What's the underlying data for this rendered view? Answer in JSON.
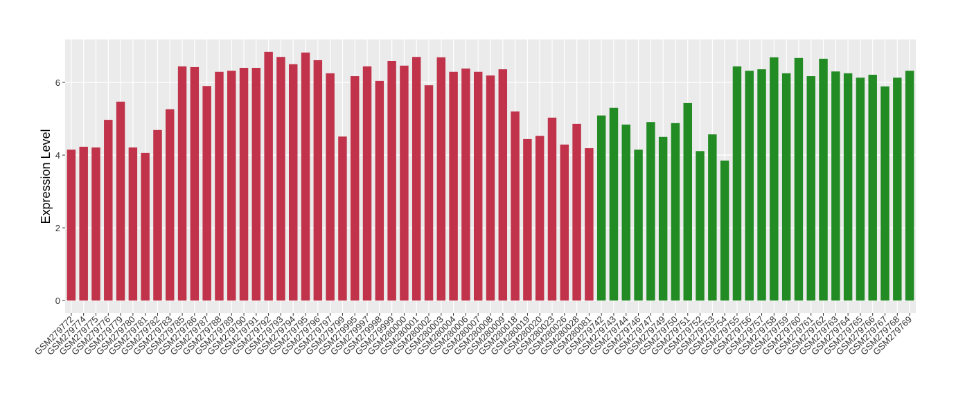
{
  "chart_data": {
    "type": "bar",
    "y_label": "Expression Level",
    "categories": [
      "GSM279772",
      "GSM279774",
      "GSM279775",
      "GSM279776",
      "GSM279779",
      "GSM279780",
      "GSM279781",
      "GSM279782",
      "GSM279783",
      "GSM279785",
      "GSM279786",
      "GSM279787",
      "GSM279788",
      "GSM279789",
      "GSM279790",
      "GSM279791",
      "GSM279792",
      "GSM279793",
      "GSM279794",
      "GSM279795",
      "GSM279796",
      "GSM279797",
      "GSM279799",
      "GSM279995",
      "GSM279997",
      "GSM279998",
      "GSM279999",
      "GSM280000",
      "GSM280001",
      "GSM280002",
      "GSM280003",
      "GSM280004",
      "GSM280006",
      "GSM280007",
      "GSM280008",
      "GSM280009",
      "GSM280018",
      "GSM280019",
      "GSM280020",
      "GSM280023",
      "GSM280026",
      "GSM280028",
      "GSM280081",
      "GSM279742",
      "GSM279743",
      "GSM279744",
      "GSM279746",
      "GSM279747",
      "GSM279749",
      "GSM279750",
      "GSM279751",
      "GSM279752",
      "GSM279753",
      "GSM279754",
      "GSM279755",
      "GSM279756",
      "GSM279757",
      "GSM279758",
      "GSM279759",
      "GSM279760",
      "GSM279761",
      "GSM279762",
      "GSM279763",
      "GSM279764",
      "GSM279765",
      "GSM279766",
      "GSM279767",
      "GSM279768",
      "GSM279769"
    ],
    "values": [
      4.15,
      4.23,
      4.21,
      4.97,
      5.47,
      4.21,
      4.06,
      4.69,
      5.26,
      6.44,
      6.42,
      5.9,
      6.29,
      6.32,
      6.4,
      6.4,
      6.84,
      6.7,
      6.5,
      6.82,
      6.61,
      6.25,
      4.51,
      6.17,
      6.44,
      6.04,
      6.59,
      6.46,
      6.7,
      5.92,
      6.69,
      6.29,
      6.38,
      6.29,
      6.19,
      6.36,
      5.2,
      4.44,
      4.53,
      5.03,
      4.29,
      4.86,
      4.19,
      5.09,
      5.3,
      4.84,
      4.15,
      4.91,
      4.5,
      4.88,
      5.43,
      4.11,
      4.57,
      3.85,
      6.44,
      6.32,
      6.36,
      6.69,
      6.25,
      6.67,
      6.17,
      6.65,
      6.3,
      6.25,
      6.13,
      6.21,
      5.89,
      6.13,
      6.32
    ],
    "colors": [
      "#c0334a",
      "#c0334a",
      "#c0334a",
      "#c0334a",
      "#c0334a",
      "#c0334a",
      "#c0334a",
      "#c0334a",
      "#c0334a",
      "#c0334a",
      "#c0334a",
      "#c0334a",
      "#c0334a",
      "#c0334a",
      "#c0334a",
      "#c0334a",
      "#c0334a",
      "#c0334a",
      "#c0334a",
      "#c0334a",
      "#c0334a",
      "#c0334a",
      "#c0334a",
      "#c0334a",
      "#c0334a",
      "#c0334a",
      "#c0334a",
      "#c0334a",
      "#c0334a",
      "#c0334a",
      "#c0334a",
      "#c0334a",
      "#c0334a",
      "#c0334a",
      "#c0334a",
      "#c0334a",
      "#c0334a",
      "#c0334a",
      "#c0334a",
      "#c0334a",
      "#c0334a",
      "#c0334a",
      "#c0334a",
      "#238b23",
      "#238b23",
      "#238b23",
      "#238b23",
      "#238b23",
      "#238b23",
      "#238b23",
      "#238b23",
      "#238b23",
      "#238b23",
      "#238b23",
      "#238b23",
      "#238b23",
      "#238b23",
      "#238b23",
      "#238b23",
      "#238b23",
      "#238b23",
      "#238b23",
      "#238b23",
      "#238b23",
      "#238b23",
      "#238b23",
      "#238b23",
      "#238b23",
      "#238b23"
    ],
    "ylim": [
      -0.34,
      7.18
    ],
    "yticks": [
      0,
      2,
      4,
      6
    ],
    "grid": true
  }
}
